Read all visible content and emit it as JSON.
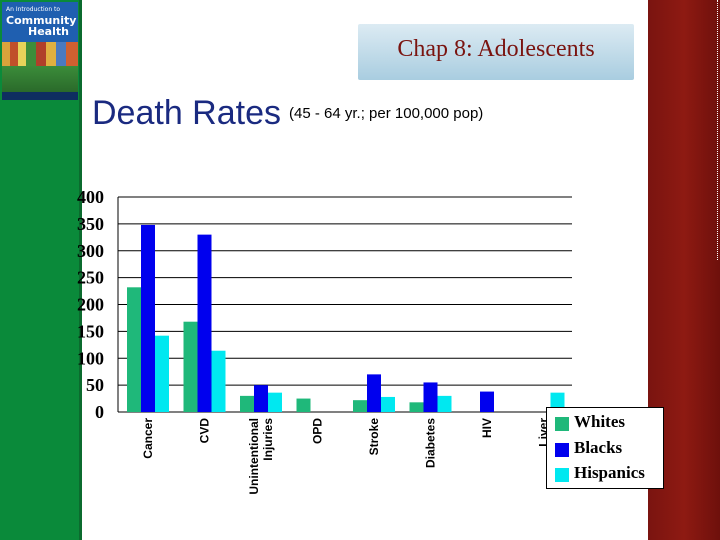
{
  "header": {
    "chapter": "Chap 8: Adolescents",
    "title": "Death Rates",
    "subtitle": "(45 - 64 yr.; per 100,000 pop)"
  },
  "book_cover": {
    "line1": "An Introduction to",
    "line2": "Community",
    "line3": "Health"
  },
  "colors": {
    "left_bar": "#0a8a3a",
    "right_bar": "#7a1410",
    "whites": "#1fb87a",
    "blacks": "#0000ee",
    "hispanics": "#00e8f0"
  },
  "chart_data": {
    "type": "bar",
    "categories": [
      "Cancer",
      "CVD",
      "Unintentional Injuries",
      "OPD",
      "Stroke",
      "Diabetes",
      "HIV",
      "Liver"
    ],
    "series": [
      {
        "name": "Whites",
        "values": [
          232,
          168,
          30,
          25,
          22,
          18,
          0,
          0
        ]
      },
      {
        "name": "Blacks",
        "values": [
          348,
          330,
          50,
          0,
          70,
          55,
          38,
          0
        ]
      },
      {
        "name": "Hispanics",
        "values": [
          142,
          114,
          36,
          0,
          28,
          30,
          0,
          36
        ]
      }
    ],
    "ylim": [
      0,
      400
    ],
    "yticks": [
      "0",
      "50",
      "100",
      "150",
      "200",
      "250",
      "300",
      "350",
      "400"
    ],
    "grid": true,
    "legend": "bottom-right"
  }
}
